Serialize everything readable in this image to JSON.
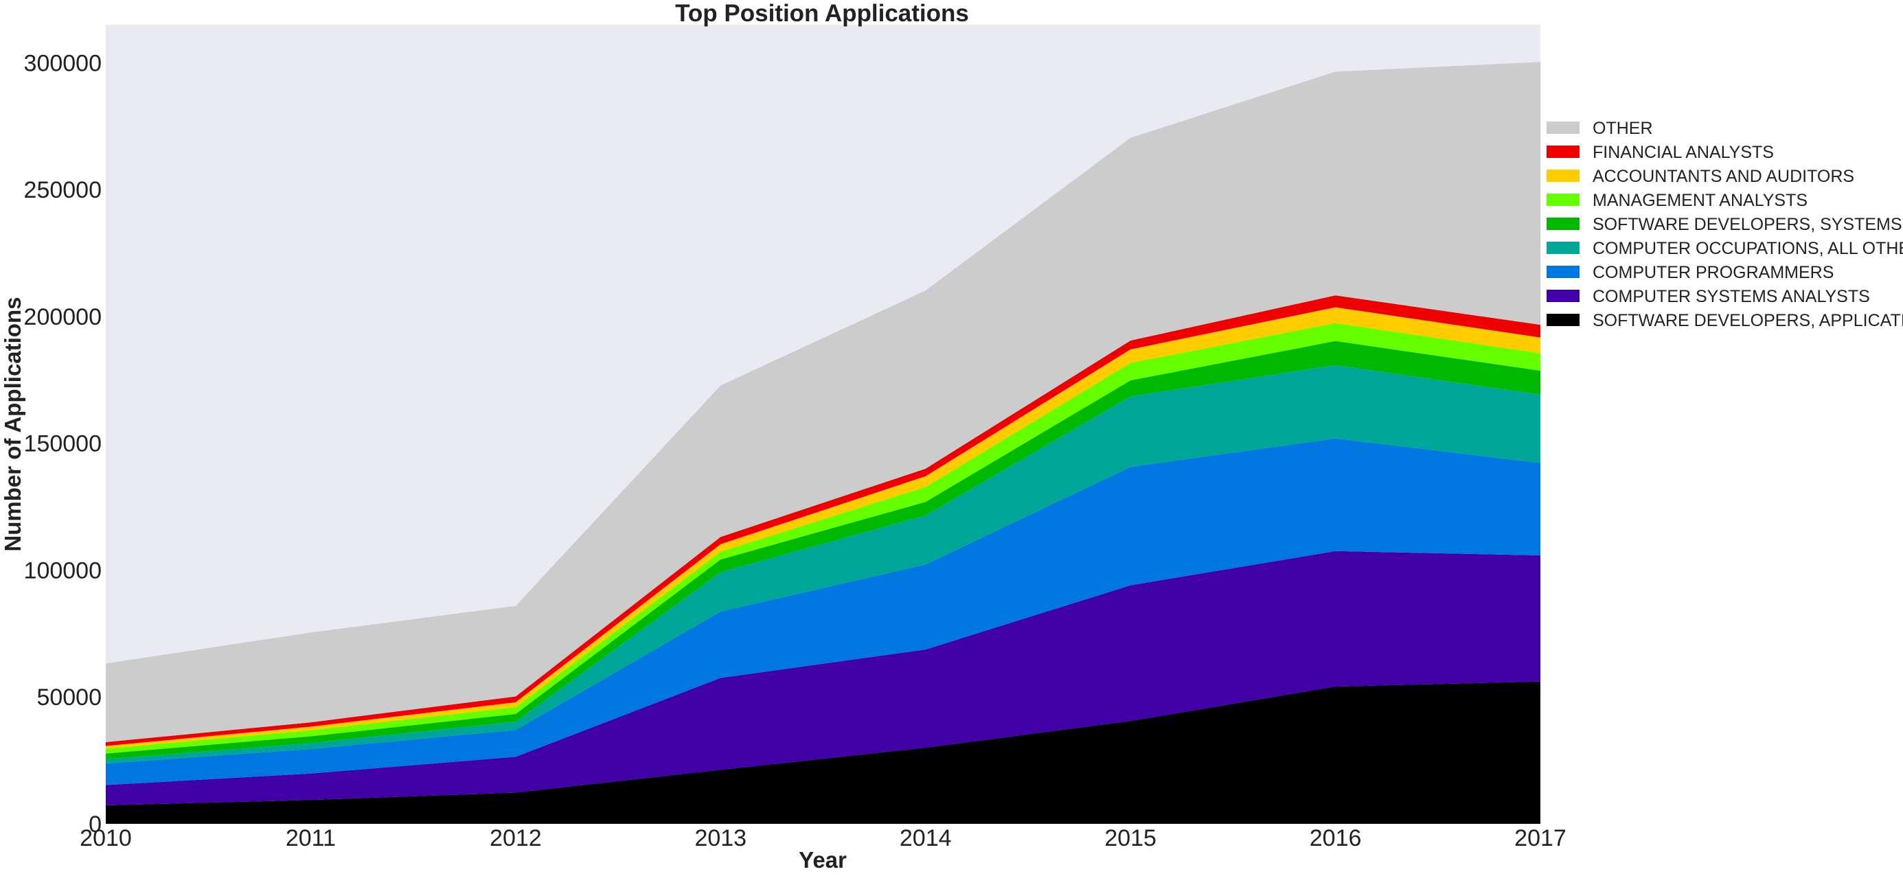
{
  "chart_data": {
    "type": "area",
    "stacked": true,
    "title": "Top Position Applications",
    "xlabel": "Year",
    "ylabel": "Number of Applications",
    "x": [
      2010,
      2011,
      2012,
      2013,
      2014,
      2015,
      2016,
      2017
    ],
    "xlim": [
      2010,
      2017
    ],
    "ylim": [
      0,
      315000
    ],
    "yticks": [
      0,
      50000,
      100000,
      150000,
      200000,
      250000,
      300000
    ],
    "xticks": [
      2010,
      2011,
      2012,
      2013,
      2014,
      2015,
      2016,
      2017
    ],
    "grid": false,
    "background": "#eaeaf2",
    "legend_position": "right (outside plot, top)",
    "series": [
      {
        "name": "SOFTWARE DEVELOPERS, APPLICATIONS",
        "color": "#000000",
        "values": [
          7300,
          9400,
          12300,
          21300,
          30000,
          40500,
          54100,
          56100
        ]
      },
      {
        "name": "COMPUTER SYSTEMS ANALYSTS",
        "color": "#4000a5",
        "values": [
          8000,
          10400,
          14100,
          36200,
          38700,
          53500,
          53400,
          49700
        ]
      },
      {
        "name": "COMPUTER PROGRAMMERS",
        "color": "#0077e0",
        "values": [
          8500,
          9700,
          10600,
          26200,
          33500,
          46700,
          44400,
          36400
        ]
      },
      {
        "name": "COMPUTER OCCUPATIONS, ALL OTHER",
        "color": "#00a697",
        "values": [
          1700,
          2300,
          3300,
          15500,
          19400,
          27800,
          28900,
          27000
        ]
      },
      {
        "name": "SOFTWARE DEVELOPERS, SYSTEMS SOFTWARE",
        "color": "#00b800",
        "values": [
          2200,
          2700,
          3000,
          5000,
          5300,
          6300,
          9500,
          9400
        ]
      },
      {
        "name": "MANAGEMENT ANALYSTS",
        "color": "#66ff00",
        "values": [
          1900,
          2400,
          2700,
          3100,
          5900,
          6900,
          7100,
          6900
        ]
      },
      {
        "name": "ACCOUNTANTS AND AUDITORS",
        "color": "#ffcc00",
        "values": [
          1100,
          1400,
          1900,
          2900,
          4200,
          5300,
          6200,
          6200
        ]
      },
      {
        "name": "FINANCIAL ANALYSTS",
        "color": "#ee0000",
        "values": [
          1500,
          1700,
          2300,
          2900,
          3000,
          3500,
          4700,
          5000
        ]
      },
      {
        "name": "OTHER",
        "color": "#cccccc",
        "values": [
          31000,
          35400,
          35700,
          59700,
          70200,
          79900,
          88200,
          103600
        ]
      }
    ]
  }
}
